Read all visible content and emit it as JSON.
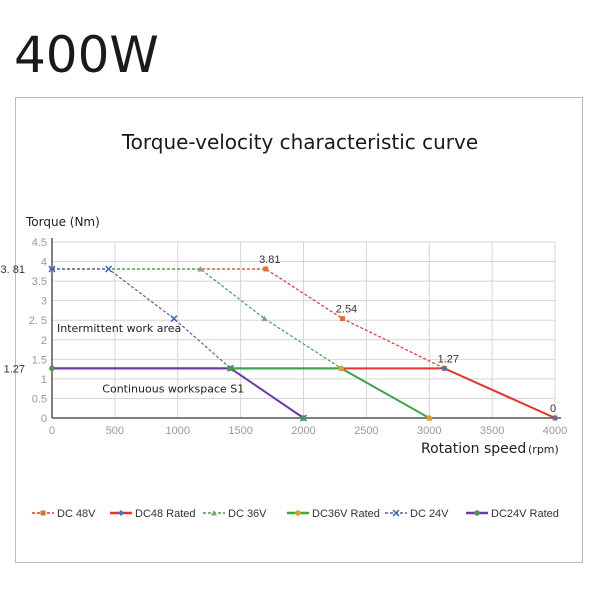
{
  "heading": "400W",
  "chart_data": {
    "type": "line",
    "title": "Torque-velocity characteristic curve",
    "ylabel": "Torque (Nm)",
    "xlabel": "Rotation speed",
    "xlabel_unit": "(rpm)",
    "xlim": [
      0,
      4000
    ],
    "ylim": [
      0,
      4.5
    ],
    "xticks": [
      0,
      500,
      1000,
      1500,
      2000,
      2500,
      3000,
      3500,
      4000
    ],
    "yticks": [
      0,
      0.5,
      1,
      1.5,
      2,
      2.5,
      3,
      3.5,
      4,
      4.5
    ],
    "ytick_labels": [
      "0",
      "0.5",
      "1",
      "1.5",
      "2",
      "2. 5",
      "3",
      "3.5",
      "4",
      "4.5"
    ],
    "grid": true,
    "legend_position": "bottom",
    "special_y_labels": [
      "3. 81",
      "1.27"
    ],
    "special_y_values": [
      3.81,
      1.27
    ],
    "annotations": [
      {
        "text": "3.81",
        "x": 1700,
        "y": 3.81
      },
      {
        "text": "2.54",
        "x": 2310,
        "y": 2.54
      },
      {
        "text": "1.27",
        "x": 3120,
        "y": 1.27
      },
      {
        "text": "0",
        "x": 4000,
        "y": 0
      }
    ],
    "region_labels": [
      {
        "text": "Intermittent work area",
        "x": 40,
        "y": 2.2
      },
      {
        "text": "Continuous workspace S1",
        "x": 400,
        "y": 0.65
      }
    ],
    "series": [
      {
        "name": "DC  48V",
        "color": "#e8322e",
        "marker_color": "#e0702a",
        "dash": true,
        "marker": "square",
        "x": [
          0,
          1700,
          2310,
          3120,
          4000
        ],
        "y": [
          3.81,
          3.81,
          2.54,
          1.27,
          0
        ]
      },
      {
        "name": "DC48  Rated",
        "color": "#e8322e",
        "marker_color": "#3a7ac0",
        "dash": false,
        "marker": "diamond",
        "x": [
          0,
          3120,
          4000
        ],
        "y": [
          1.27,
          1.27,
          0
        ]
      },
      {
        "name": "DC  36V",
        "color": "#3aa64a",
        "marker_color": "#8a9a8a",
        "dash": true,
        "marker": "triangle",
        "x": [
          0,
          1180,
          1690,
          2300,
          3000
        ],
        "y": [
          3.81,
          3.81,
          2.54,
          1.27,
          0
        ]
      },
      {
        "name": "DC36V  Rated",
        "color": "#3aa64a",
        "marker_color": "#e0a020",
        "dash": false,
        "marker": "circle",
        "x": [
          0,
          2300,
          3000
        ],
        "y": [
          1.27,
          1.27,
          0
        ]
      },
      {
        "name": "DC  24V",
        "color": "#5a5ab0",
        "marker_color": "#3a6ac0",
        "dash": true,
        "marker": "x",
        "x": [
          0,
          450,
          970,
          1420,
          2000
        ],
        "y": [
          3.81,
          3.81,
          2.54,
          1.27,
          0
        ]
      },
      {
        "name": "DC24V  Rated",
        "color": "#6a3aa8",
        "marker_color": "#4a9a4a",
        "dash": false,
        "marker": "circle",
        "x": [
          0,
          1420,
          2000
        ],
        "y": [
          1.27,
          1.27,
          0
        ]
      }
    ]
  }
}
